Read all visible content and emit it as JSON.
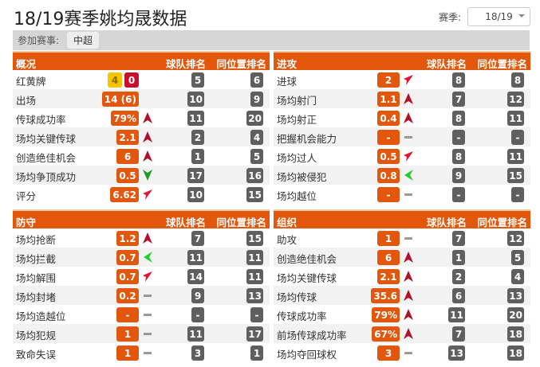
{
  "title": "18/19赛季姚均晟数据",
  "season": {
    "label": "赛季:",
    "value": "18/19"
  },
  "filter": {
    "label": "参加赛事:",
    "chip": "中超"
  },
  "colors": {
    "accent": "#e2570b",
    "rank": "#5f5f5f",
    "yellow": "#f6c400",
    "red": "#c8102e",
    "up": "#b0102a",
    "down": "#1fbf2a"
  },
  "panels": [
    {
      "title": "概况",
      "col_team": "球队排名",
      "col_pos": "同位置排名",
      "rows": [
        {
          "label": "红黄牌",
          "yellow": "4",
          "red": "0",
          "trend": "none",
          "team": "5",
          "pos": "6"
        },
        {
          "label": "出场",
          "value": "14 (6)",
          "trend": "none",
          "team": "10",
          "pos": "9"
        },
        {
          "label": "传球成功率",
          "value": "79%",
          "trend": "up",
          "team": "11",
          "pos": "20"
        },
        {
          "label": "场均关键传球",
          "value": "2.1",
          "trend": "up",
          "team": "2",
          "pos": "4"
        },
        {
          "label": "创造绝佳机会",
          "value": "6",
          "trend": "up",
          "team": "1",
          "pos": "5"
        },
        {
          "label": "场均争顶成功",
          "value": "0.5",
          "trend": "down",
          "team": "17",
          "pos": "16"
        },
        {
          "label": "评分",
          "value": "6.62",
          "trend": "up-right",
          "team": "10",
          "pos": "15"
        }
      ]
    },
    {
      "title": "进攻",
      "col_team": "球队排名",
      "col_pos": "同位置排名",
      "rows": [
        {
          "label": "进球",
          "value": "2",
          "trend": "up-right",
          "team": "8",
          "pos": "8"
        },
        {
          "label": "场均射门",
          "value": "1.1",
          "trend": "up",
          "team": "7",
          "pos": "12"
        },
        {
          "label": "场均射正",
          "value": "0.4",
          "trend": "up",
          "team": "8",
          "pos": "11"
        },
        {
          "label": "把握机会能力",
          "value": "-",
          "trend": "flat",
          "team": "-",
          "pos": "-"
        },
        {
          "label": "场均过人",
          "value": "0.5",
          "trend": "up-right",
          "team": "8",
          "pos": "11"
        },
        {
          "label": "场均被侵犯",
          "value": "0.8",
          "trend": "down-left",
          "team": "9",
          "pos": "15"
        },
        {
          "label": "场均越位",
          "value": "-",
          "trend": "flat",
          "team": "-",
          "pos": "-"
        }
      ]
    },
    {
      "title": "防守",
      "col_team": "球队排名",
      "col_pos": "同位置排名",
      "rows": [
        {
          "label": "场均抢断",
          "value": "1.2",
          "trend": "up",
          "team": "7",
          "pos": "15"
        },
        {
          "label": "场均拦截",
          "value": "0.7",
          "trend": "down-left",
          "team": "11",
          "pos": "11"
        },
        {
          "label": "场均解围",
          "value": "0.7",
          "trend": "up-right",
          "team": "14",
          "pos": "11"
        },
        {
          "label": "场均封堵",
          "value": "0.2",
          "trend": "flat",
          "team": "9",
          "pos": "13"
        },
        {
          "label": "场均造越位",
          "value": "-",
          "trend": "flat",
          "team": "-",
          "pos": "-"
        },
        {
          "label": "场均犯规",
          "value": "1",
          "trend": "flat",
          "team": "11",
          "pos": "17"
        },
        {
          "label": "致命失误",
          "value": "1",
          "trend": "flat",
          "team": "3",
          "pos": "1"
        }
      ]
    },
    {
      "title": "组织",
      "col_team": "球队排名",
      "col_pos": "同位置排名",
      "rows": [
        {
          "label": "助攻",
          "value": "1",
          "trend": "flat",
          "team": "7",
          "pos": "12"
        },
        {
          "label": "创造绝佳机会",
          "value": "6",
          "trend": "up",
          "team": "1",
          "pos": "5"
        },
        {
          "label": "场均关键传球",
          "value": "2.1",
          "trend": "up",
          "team": "2",
          "pos": "4"
        },
        {
          "label": "场均传球",
          "value": "35.6",
          "trend": "up",
          "team": "6",
          "pos": "13"
        },
        {
          "label": "传球成功率",
          "value": "79%",
          "trend": "up",
          "team": "11",
          "pos": "20"
        },
        {
          "label": "前场传球成功率",
          "value": "67%",
          "trend": "up",
          "team": "7",
          "pos": "18"
        },
        {
          "label": "场均夺回球权",
          "value": "3",
          "trend": "flat",
          "team": "13",
          "pos": "18"
        }
      ]
    }
  ]
}
